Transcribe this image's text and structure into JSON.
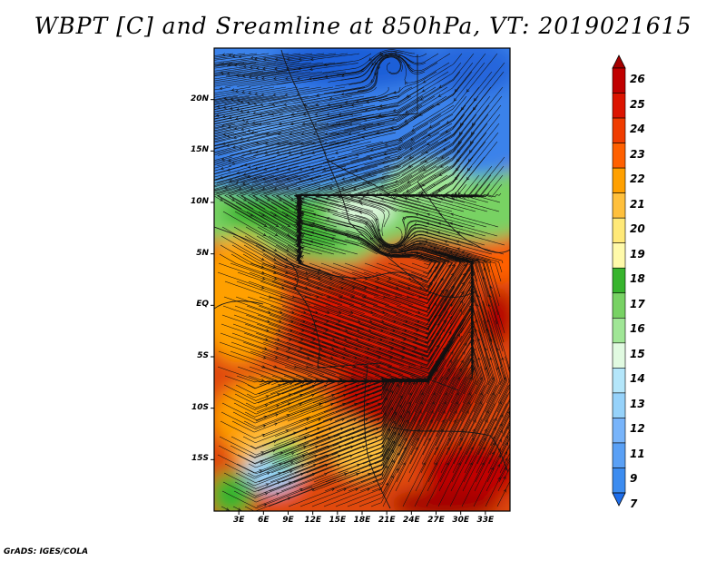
{
  "title": "WBPT [C] and Sreamline at 850hPa, VT: 2019021615",
  "footer": "GrADS: IGES/COLA",
  "map": {
    "lon_range": [
      0,
      36
    ],
    "lat_range": [
      -20,
      25
    ],
    "lat_ticks": [
      {
        "value": 20,
        "label": "20N"
      },
      {
        "value": 15,
        "label": "15N"
      },
      {
        "value": 10,
        "label": "10N"
      },
      {
        "value": 5,
        "label": "5N"
      },
      {
        "value": 0,
        "label": "EQ"
      },
      {
        "value": -5,
        "label": "5S"
      },
      {
        "value": -10,
        "label": "10S"
      },
      {
        "value": -15,
        "label": "15S"
      }
    ],
    "lon_ticks": [
      {
        "value": 3,
        "label": "3E"
      },
      {
        "value": 6,
        "label": "6E"
      },
      {
        "value": 9,
        "label": "9E"
      },
      {
        "value": 12,
        "label": "12E"
      },
      {
        "value": 15,
        "label": "15E"
      },
      {
        "value": 18,
        "label": "18E"
      },
      {
        "value": 21,
        "label": "21E"
      },
      {
        "value": 24,
        "label": "24E"
      },
      {
        "value": 27,
        "label": "27E"
      },
      {
        "value": 30,
        "label": "30E"
      },
      {
        "value": 33,
        "label": "33E"
      }
    ]
  },
  "colorbar": {
    "levels": [
      "7",
      "9",
      "11",
      "12",
      "13",
      "14",
      "15",
      "16",
      "17",
      "18",
      "19",
      "20",
      "21",
      "22",
      "23",
      "24",
      "25",
      "26"
    ],
    "colors": [
      "#1e6eeb",
      "#3c8cf0",
      "#5aa0f5",
      "#78b4fa",
      "#96d2fa",
      "#b4e6fa",
      "#e1fae1",
      "#a0e696",
      "#78d264",
      "#37b42d",
      "#fffaaa",
      "#ffe978",
      "#ffc03c",
      "#ffa000",
      "#ff6000",
      "#f03c00",
      "#dc1400",
      "#c00000",
      "#a50000"
    ]
  }
}
